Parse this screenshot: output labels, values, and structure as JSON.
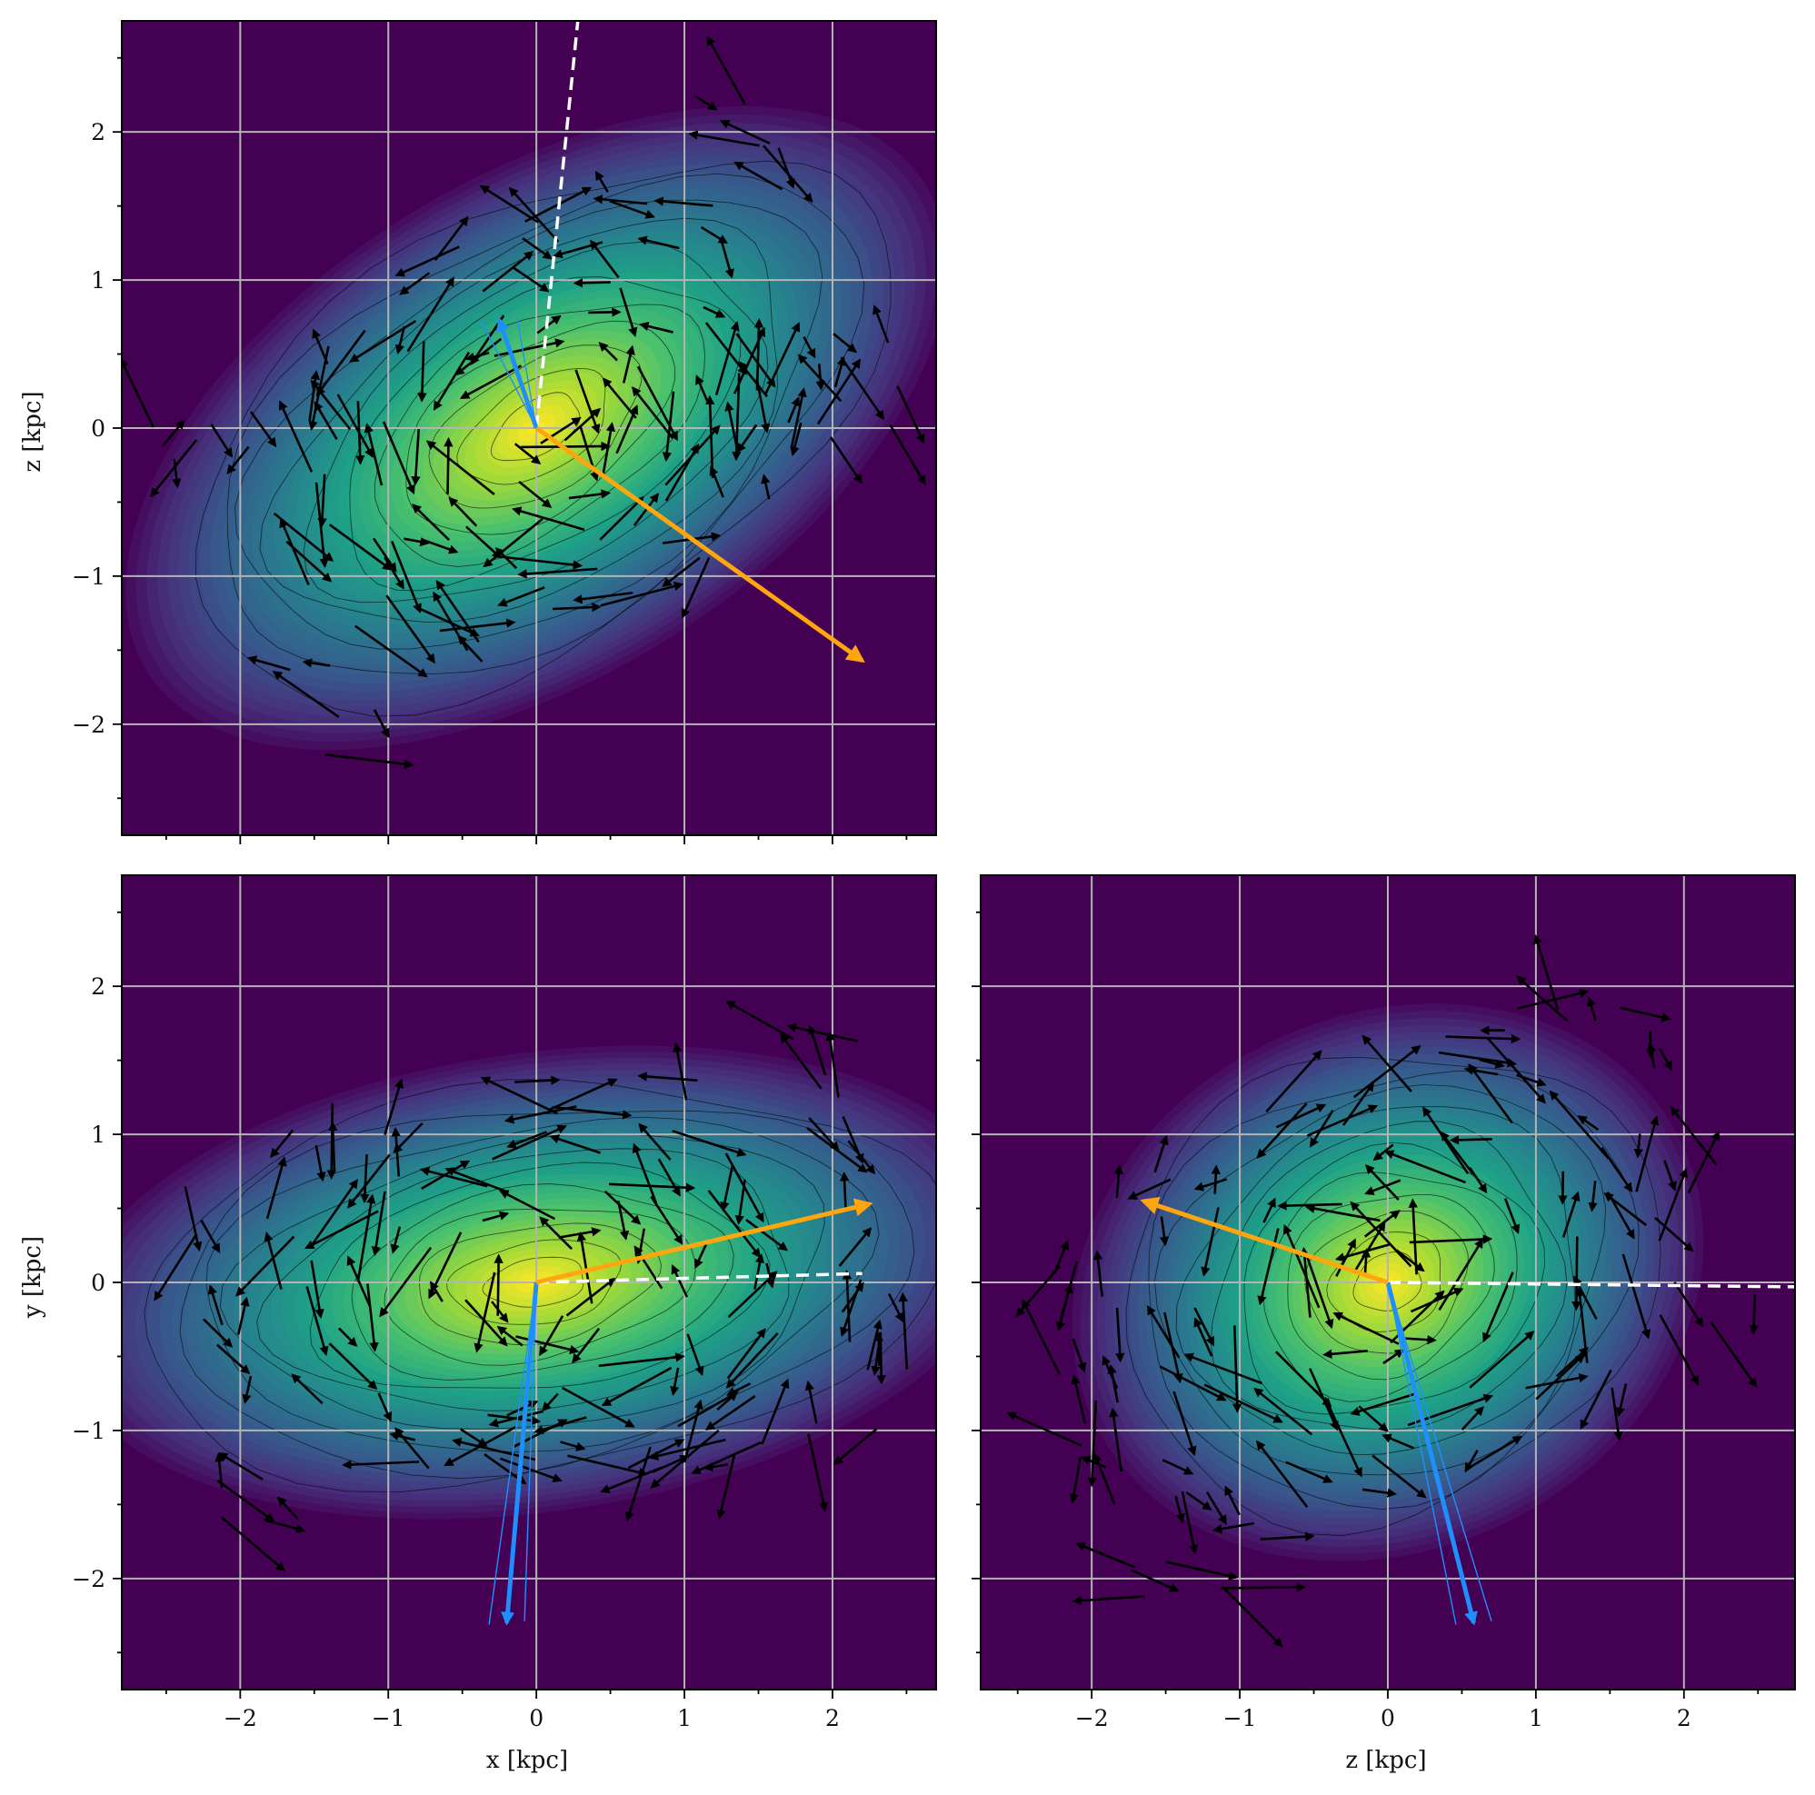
{
  "figure": {
    "background": "#ffffff",
    "density_colormap": [
      "#440154",
      "#46337e",
      "#365c8d",
      "#277f8e",
      "#1fa187",
      "#4ac16d",
      "#a0da39",
      "#fde725"
    ],
    "grid_color": "#b4b4b4",
    "arrow_color": "#000000",
    "contour_color": "#000000",
    "orange_color": "#ffa60f",
    "blue_color": "#1f8fff",
    "dashed_color": "#ffffff"
  },
  "chart_data": [
    {
      "id": "xz",
      "type": "heatmap",
      "panel": "top-left",
      "description_markers": "density map with velocity vector field, contours, orange and blue direction arrows, white dashed line",
      "xlabel": "",
      "ylabel": "z [kpc]",
      "xlim": [
        -2.8,
        2.7
      ],
      "ylim": [
        -2.75,
        2.75
      ],
      "xticks": [
        -2,
        -1,
        0,
        1,
        2
      ],
      "yticks": [
        -2,
        -1,
        0,
        1,
        2
      ],
      "ytick_labels": [
        "−2",
        "−1",
        "0",
        "1",
        "2"
      ],
      "show_xtick_labels": false,
      "grid": true,
      "density": {
        "angle_deg": 32,
        "sigma_major": 1.2,
        "sigma_minor": 0.65,
        "center": [
          0.0,
          0.0
        ]
      },
      "orange_arrow": {
        "from": [
          0.0,
          0.0
        ],
        "to": [
          2.2,
          -1.57
        ]
      },
      "blue_arrow": {
        "from": [
          0.0,
          0.0
        ],
        "to": [
          -0.25,
          0.73
        ]
      },
      "dashed_line": {
        "from": [
          0.0,
          0.0
        ],
        "to": [
          0.28,
          2.75
        ]
      }
    },
    {
      "id": "xy",
      "type": "heatmap",
      "panel": "bottom-left",
      "description_markers": "density map with velocity vector field, contours, orange and blue direction arrows, white dashed line",
      "xlabel": "x [kpc]",
      "ylabel": "y [kpc]",
      "xlim": [
        -2.8,
        2.7
      ],
      "ylim": [
        -2.75,
        2.75
      ],
      "xticks": [
        -2,
        -1,
        0,
        1,
        2
      ],
      "yticks": [
        -2,
        -1,
        0,
        1,
        2
      ],
      "xtick_labels": [
        "−2",
        "−1",
        "0",
        "1",
        "2"
      ],
      "ytick_labels": [
        "−2",
        "−1",
        "0",
        "1",
        "2"
      ],
      "show_xtick_labels": true,
      "grid": true,
      "density": {
        "angle_deg": 8,
        "sigma_major": 1.25,
        "sigma_minor": 0.6,
        "center": [
          0.0,
          0.0
        ]
      },
      "orange_arrow": {
        "from": [
          0.0,
          0.0
        ],
        "to": [
          2.25,
          0.53
        ]
      },
      "blue_arrow": {
        "from": [
          0.0,
          0.0
        ],
        "to": [
          -0.2,
          -2.3
        ]
      },
      "dashed_line": {
        "from": [
          0.0,
          0.0
        ],
        "to": [
          2.2,
          0.06
        ]
      }
    },
    {
      "id": "zy",
      "type": "heatmap",
      "panel": "bottom-right",
      "description_markers": "density map with velocity vector field, contours, orange and blue direction arrows, white dashed line",
      "xlabel": "z [kpc]",
      "ylabel": "",
      "xlim": [
        -2.75,
        2.75
      ],
      "ylim": [
        -2.75,
        2.75
      ],
      "xticks": [
        -2,
        -1,
        0,
        1,
        2
      ],
      "yticks": [
        -2,
        -1,
        0,
        1,
        2
      ],
      "xtick_labels": [
        "−2",
        "−1",
        "0",
        "1",
        "2"
      ],
      "show_xtick_labels": true,
      "show_ytick_labels": false,
      "grid": true,
      "density": {
        "angle_deg": 25,
        "sigma_major": 0.85,
        "sigma_minor": 0.7,
        "center": [
          0.0,
          0.0
        ]
      },
      "orange_arrow": {
        "from": [
          0.0,
          0.0
        ],
        "to": [
          -1.65,
          0.55
        ]
      },
      "blue_arrow": {
        "from": [
          0.0,
          0.0
        ],
        "to": [
          0.58,
          -2.3
        ]
      },
      "dashed_line": {
        "from": [
          0.0,
          0.0
        ],
        "to": [
          2.75,
          -0.03
        ]
      }
    }
  ]
}
